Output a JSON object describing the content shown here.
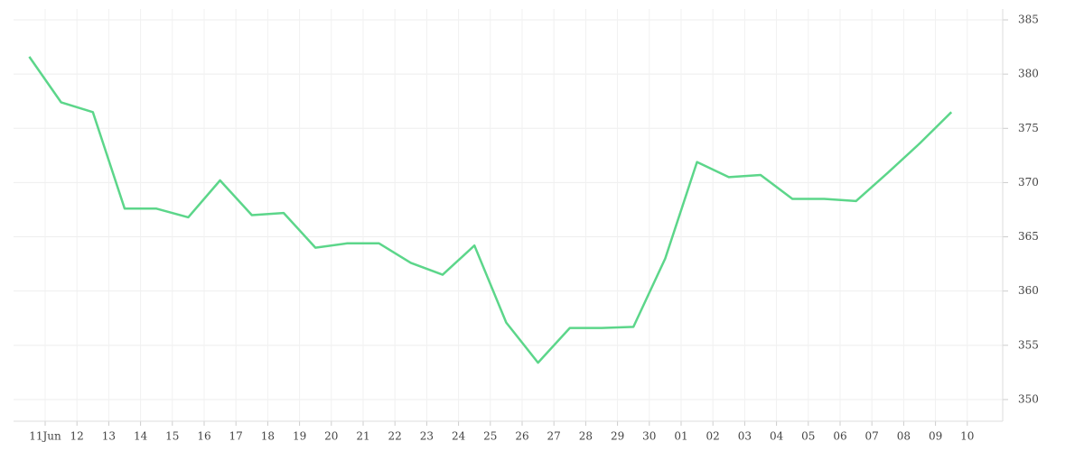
{
  "chart_data": {
    "type": "line",
    "categories": [
      "11Jun",
      "12",
      "13",
      "14",
      "15",
      "16",
      "17",
      "18",
      "19",
      "20",
      "21",
      "22",
      "23",
      "24",
      "25",
      "26",
      "27",
      "28",
      "29",
      "30",
      "01",
      "02",
      "03",
      "04",
      "05",
      "06",
      "07",
      "08",
      "09",
      "10"
    ],
    "values": [
      381.6,
      377.4,
      376.5,
      367.6,
      367.6,
      366.8,
      370.2,
      367.0,
      367.2,
      364.0,
      364.4,
      364.4,
      362.6,
      361.5,
      364.2,
      357.1,
      353.4,
      356.6,
      356.6,
      356.7,
      363.0,
      371.9,
      370.5,
      370.7,
      368.5,
      368.5,
      368.3,
      370.9,
      373.6,
      376.5
    ],
    "color": "#5cd68a",
    "ylim": [
      348,
      386
    ],
    "yticks": [
      350,
      355,
      360,
      365,
      370,
      375,
      380,
      385
    ],
    "grid": true
  }
}
